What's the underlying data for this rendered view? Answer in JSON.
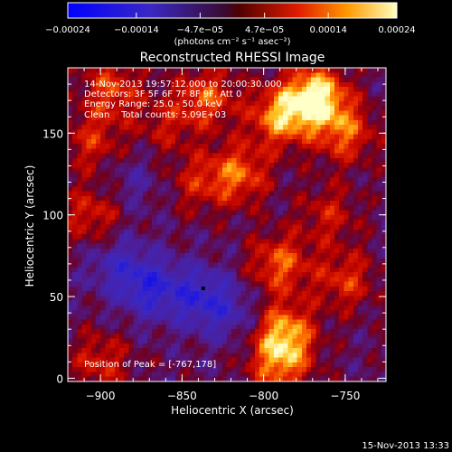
{
  "chart_data": {
    "type": "heatmap",
    "title": "Reconstructed RHESSI Image",
    "xlabel": "Heliocentric X (arcsec)",
    "ylabel": "Heliocentric Y (arcsec)",
    "xlim": [
      -920,
      -725
    ],
    "ylim": [
      -2,
      190
    ],
    "x_ticks": [
      -900,
      -850,
      -800,
      -750
    ],
    "y_ticks": [
      0,
      50,
      100,
      150
    ],
    "x_tick_labels": [
      "−900",
      "−850",
      "−800",
      "−750"
    ],
    "y_tick_labels": [
      "0",
      "50",
      "100",
      "150"
    ],
    "colorbar": {
      "range": [
        -0.00024,
        0.00024
      ],
      "ticks": [
        -0.00024,
        -0.00014,
        -4.7e-05,
        4.7e-05,
        0.00014,
        0.00024
      ],
      "tick_labels": [
        "−0.00024",
        "−0.00014",
        "−4.7e−05",
        "4.7e−05",
        "0.00014",
        "0.00024"
      ],
      "unit_label": "(photons cm⁻² s⁻¹ asec⁻²)"
    },
    "annotations": [
      "14-Nov-2013 19:57:12.000 to 20:00:30.000",
      "Detectors: 3F 5F 6F 7F 8F 9F, Att 0",
      "Energy Range: 25.0 - 50.0 keV",
      "Clean    Total counts: 5.09E+03"
    ],
    "peak_label": "Position of Peak = [-767,178]",
    "peak_position": [
      -767,
      178
    ],
    "min_marker": [
      -837,
      55
    ],
    "timestamp": "15-Nov-2013 13:33",
    "features": [
      {
        "x": -768,
        "y": 172,
        "amp": 1.0
      },
      {
        "x": -790,
        "y": 160,
        "amp": 0.72
      },
      {
        "x": -750,
        "y": 150,
        "amp": 0.55
      },
      {
        "x": -835,
        "y": 172,
        "amp": 0.55
      },
      {
        "x": -815,
        "y": 125,
        "amp": 0.58
      },
      {
        "x": -840,
        "y": 120,
        "amp": 0.35
      },
      {
        "x": -893,
        "y": 177,
        "amp": 0.5
      },
      {
        "x": -905,
        "y": 145,
        "amp": 0.4
      },
      {
        "x": -905,
        "y": 100,
        "amp": 0.42
      },
      {
        "x": -760,
        "y": 100,
        "amp": 0.35
      },
      {
        "x": -790,
        "y": 70,
        "amp": 0.58
      },
      {
        "x": -750,
        "y": 60,
        "amp": 0.45
      },
      {
        "x": -787,
        "y": 28,
        "amp": 0.72
      },
      {
        "x": -790,
        "y": 8,
        "amp": 0.6
      },
      {
        "x": -900,
        "y": 10,
        "amp": 0.4
      },
      {
        "x": -860,
        "y": 155,
        "amp": 0.3
      },
      {
        "x": -870,
        "y": 55,
        "amp": -0.55
      },
      {
        "x": -840,
        "y": 50,
        "amp": -0.5
      },
      {
        "x": -890,
        "y": 70,
        "amp": -0.35
      },
      {
        "x": -820,
        "y": 40,
        "amp": -0.3
      },
      {
        "x": -880,
        "y": 120,
        "amp": -0.2
      }
    ]
  }
}
